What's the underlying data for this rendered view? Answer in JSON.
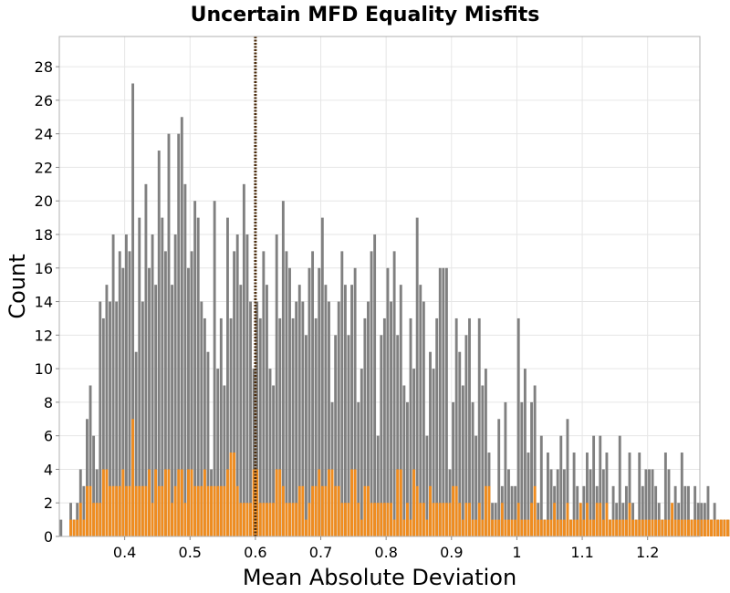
{
  "chart_data": {
    "type": "bar",
    "title": "Uncertain MFD Equality Misfits",
    "xlabel": "Mean Absolute Deviation",
    "ylabel": "Count",
    "xlim": [
      0.3,
      1.28
    ],
    "ylim": [
      0,
      29.8
    ],
    "bin_start": 0.3,
    "bin_width": 0.005,
    "xticks": [
      0.4,
      0.5,
      0.6,
      0.7,
      0.8,
      0.9,
      1,
      1.1,
      1.2
    ],
    "xtick_labels": [
      "0.4",
      "0.5",
      "0.6",
      "0.7",
      "0.8",
      "0.9",
      "1",
      "1.1",
      "1.2"
    ],
    "yticks": [
      0,
      2,
      4,
      6,
      8,
      10,
      12,
      14,
      16,
      18,
      20,
      22,
      24,
      26,
      28
    ],
    "ytick_labels": [
      "0",
      "2",
      "4",
      "6",
      "8",
      "10",
      "12",
      "14",
      "16",
      "18",
      "20",
      "22",
      "24",
      "26",
      "28"
    ],
    "grid": true,
    "reference_line": {
      "x": 0.6,
      "style": "dotted",
      "color": "#4a2a0a"
    },
    "series": [
      {
        "color": "#808080",
        "values": [
          1,
          0,
          0,
          2,
          1,
          2,
          4,
          3,
          7,
          9,
          6,
          4,
          14,
          13,
          15,
          14,
          18,
          14,
          17,
          16,
          18,
          17,
          27,
          11,
          19,
          14,
          21,
          16,
          18,
          15,
          23,
          19,
          17,
          24,
          15,
          18,
          24,
          25,
          21,
          16,
          17,
          20,
          19,
          14,
          13,
          11,
          4,
          20,
          10,
          13,
          9,
          19,
          13,
          17,
          18,
          15,
          21,
          18,
          14,
          10,
          14,
          13,
          17,
          15,
          10,
          9,
          18,
          13,
          20,
          17,
          16,
          13,
          14,
          15,
          14,
          12,
          16,
          17,
          13,
          16,
          19,
          15,
          14,
          8,
          12,
          14,
          17,
          15,
          12,
          15,
          16,
          8,
          10,
          13,
          14,
          17,
          18,
          6,
          12,
          13,
          16,
          14,
          17,
          12,
          15,
          9,
          8,
          13,
          10,
          19,
          15,
          14,
          6,
          11,
          10,
          13,
          16,
          16,
          16,
          4,
          8,
          13,
          11,
          9,
          12,
          13,
          8,
          6,
          13,
          9,
          10,
          5,
          2,
          2,
          7,
          3,
          8,
          4,
          3,
          3,
          13,
          8,
          10,
          5,
          8,
          9,
          2,
          6,
          1,
          5,
          4,
          3,
          4,
          6,
          4,
          7,
          1,
          5,
          3,
          1,
          3,
          5,
          4,
          6,
          3,
          6,
          4,
          5,
          1,
          3,
          2,
          6,
          2,
          3,
          5,
          2,
          1,
          5,
          3,
          4,
          4,
          4,
          3,
          2,
          1,
          5,
          4,
          1,
          3,
          2,
          5,
          3,
          3,
          1,
          3,
          2,
          2,
          2,
          3,
          1,
          2,
          1,
          1,
          1,
          1,
          1,
          1,
          1,
          1,
          1,
          1,
          1,
          1,
          2,
          1,
          1,
          1,
          0,
          0,
          0,
          1,
          1
        ]
      },
      {
        "color": "#f08c1e",
        "values": [
          0,
          0,
          0,
          1,
          1,
          1,
          2,
          1,
          3,
          3,
          2,
          2,
          2,
          4,
          4,
          3,
          3,
          3,
          3,
          4,
          3,
          3,
          7,
          3,
          3,
          3,
          3,
          4,
          2,
          4,
          3,
          3,
          4,
          4,
          2,
          3,
          4,
          4,
          2,
          4,
          4,
          3,
          3,
          3,
          4,
          3,
          3,
          3,
          3,
          3,
          3,
          4,
          5,
          5,
          3,
          2,
          2,
          2,
          2,
          4,
          4,
          2,
          2,
          2,
          2,
          2,
          4,
          4,
          3,
          2,
          2,
          2,
          2,
          3,
          3,
          1,
          2,
          3,
          3,
          4,
          3,
          3,
          4,
          4,
          3,
          3,
          2,
          2,
          2,
          4,
          4,
          2,
          1,
          3,
          3,
          2,
          2,
          2,
          2,
          2,
          2,
          2,
          1,
          4,
          4,
          1,
          2,
          1,
          4,
          3,
          2,
          2,
          1,
          3,
          2,
          2,
          2,
          2,
          2,
          2,
          3,
          3,
          2,
          1,
          2,
          2,
          1,
          1,
          2,
          1,
          3,
          3,
          1,
          1,
          1,
          2,
          1,
          1,
          1,
          1,
          2,
          1,
          1,
          1,
          2,
          3,
          1,
          1,
          1,
          1,
          1,
          2,
          1,
          1,
          1,
          2,
          1,
          1,
          1,
          2,
          1,
          2,
          1,
          1,
          2,
          2,
          1,
          2,
          1,
          1,
          1,
          1,
          1,
          1,
          2,
          1,
          1,
          1,
          1,
          1,
          1,
          1,
          1,
          1,
          1,
          1,
          1,
          2,
          1,
          1,
          1,
          1,
          1,
          1,
          1,
          1,
          1,
          1,
          1,
          1,
          1,
          1,
          1,
          1,
          1,
          1,
          1,
          1,
          1,
          1,
          1,
          1,
          1,
          1,
          1,
          1,
          1,
          1,
          1,
          1,
          1,
          1,
          1,
          1
        ]
      }
    ]
  }
}
